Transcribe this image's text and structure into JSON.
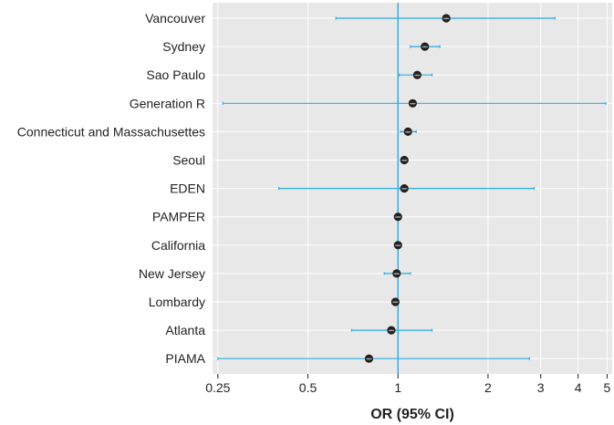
{
  "chart_data": {
    "type": "forest",
    "xlabel": "OR (95% CI)",
    "x_scale": "log",
    "xlim": [
      0.24,
      5.2
    ],
    "xticks": [
      0.25,
      0.5,
      1,
      2,
      3,
      4,
      5
    ],
    "xtick_labels": [
      "0.25",
      "0.5",
      "1",
      "2",
      "3",
      "4",
      "5"
    ],
    "reference_line": 1,
    "grid": true,
    "studies": [
      {
        "label": "Vancouver",
        "or": 1.45,
        "ci_low": 0.62,
        "ci_high": 3.35
      },
      {
        "label": "Sydney",
        "or": 1.23,
        "ci_low": 1.1,
        "ci_high": 1.38
      },
      {
        "label": "Sao Paulo",
        "or": 1.16,
        "ci_low": 1.01,
        "ci_high": 1.3
      },
      {
        "label": "Generation R",
        "or": 1.12,
        "ci_low": 0.26,
        "ci_high": 4.95
      },
      {
        "label": "Connecticut and Massachusettes",
        "or": 1.08,
        "ci_low": 1.02,
        "ci_high": 1.15
      },
      {
        "label": "Seoul",
        "or": 1.05,
        "ci_low": 1.02,
        "ci_high": 1.08
      },
      {
        "label": "EDEN",
        "or": 1.05,
        "ci_low": 0.4,
        "ci_high": 2.85
      },
      {
        "label": "PAMPER",
        "or": 1.0,
        "ci_low": 0.98,
        "ci_high": 1.02
      },
      {
        "label": "California",
        "or": 1.0,
        "ci_low": 0.98,
        "ci_high": 1.02
      },
      {
        "label": "New Jersey",
        "or": 0.99,
        "ci_low": 0.9,
        "ci_high": 1.1
      },
      {
        "label": "Lombardy",
        "or": 0.98,
        "ci_low": 0.96,
        "ci_high": 1.0
      },
      {
        "label": "Atlanta",
        "or": 0.95,
        "ci_low": 0.7,
        "ci_high": 1.3
      },
      {
        "label": "PIAMA",
        "or": 0.8,
        "ci_low": 0.25,
        "ci_high": 2.75
      }
    ],
    "colors": {
      "panel_background": "#e8e8e8",
      "grid": "#ffffff",
      "ci_line": "#29abe2",
      "reference_line": "#29abe2",
      "point": "#231f20",
      "point_highlight": "#9a9a9a",
      "text": "#231f20"
    }
  }
}
